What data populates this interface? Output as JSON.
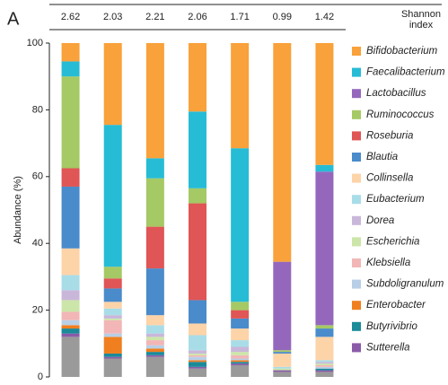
{
  "chart_data": {
    "type": "stacked_bar",
    "panel_label": "A",
    "ylabel": "Abundance (%)",
    "shannon_label": "Shannon index",
    "shannon_index": [
      2.62,
      2.03,
      2.21,
      2.06,
      1.71,
      0.99,
      1.42
    ],
    "categories": [
      null,
      null,
      null,
      null,
      null,
      null,
      null
    ],
    "ylim": [
      0,
      100
    ],
    "yticks": [
      0,
      20,
      40,
      60,
      80,
      100
    ],
    "grid": false,
    "series": [
      {
        "name": "Bifidobacterium",
        "color": "#f9a13a",
        "values": [
          5.5,
          24.5,
          34.5,
          20.5,
          31.5,
          65.5,
          36.5
        ]
      },
      {
        "name": "Faecalibacterium",
        "color": "#26bcd6",
        "values": [
          4.5,
          42.5,
          6,
          23,
          46,
          0,
          2
        ]
      },
      {
        "name": "Lactobacillus",
        "color": "#9467bd",
        "values": [
          0,
          0,
          0,
          0,
          0,
          26.5,
          46
        ]
      },
      {
        "name": "Ruminococcus",
        "color": "#a5c964",
        "values": [
          27.5,
          3.5,
          14.5,
          4.5,
          2.5,
          0.5,
          1
        ]
      },
      {
        "name": "Roseburia",
        "color": "#e05555",
        "values": [
          5.5,
          3,
          12.5,
          29,
          2.5,
          0,
          0
        ]
      },
      {
        "name": "Blautia",
        "color": "#4a8bcb",
        "values": [
          18.5,
          4,
          14,
          7,
          3,
          0.5,
          2.5
        ]
      },
      {
        "name": "Collinsella",
        "color": "#fdd3a8",
        "values": [
          8,
          2,
          3,
          3.5,
          3.5,
          4,
          7
        ]
      },
      {
        "name": "Eubacterium",
        "color": "#a8dde8",
        "values": [
          4.5,
          2,
          2.5,
          4.5,
          2,
          0.5,
          0.5
        ]
      },
      {
        "name": "Dorea",
        "color": "#c9b7da",
        "values": [
          3,
          1,
          1,
          1,
          1.5,
          0,
          0.5
        ]
      },
      {
        "name": "Escherichia",
        "color": "#cce5a8",
        "values": [
          3.5,
          0.5,
          1,
          0.5,
          1,
          0.5,
          0.5
        ]
      },
      {
        "name": "Klebsiella",
        "color": "#f2b6b6",
        "values": [
          2.5,
          4,
          1.5,
          0.5,
          1,
          0,
          0.5
        ]
      },
      {
        "name": "Subdoligranulum",
        "color": "#b8cfe6",
        "values": [
          1.5,
          1,
          1,
          1,
          0.5,
          0,
          0.5
        ]
      },
      {
        "name": "Enterobacter",
        "color": "#f07f1f",
        "values": [
          1,
          5,
          1,
          0.5,
          0.5,
          0,
          0
        ]
      },
      {
        "name": "Butyrivibrio",
        "color": "#1b8a99",
        "values": [
          1.5,
          1,
          1,
          1.5,
          0.5,
          0,
          0.5
        ]
      },
      {
        "name": "Sutterella",
        "color": "#8a5ba8",
        "values": [
          1,
          0.5,
          0.5,
          0.5,
          0.5,
          0.5,
          0.5
        ]
      },
      {
        "color": "#9a9a9a",
        "values": [
          12,
          5.5,
          6,
          2.5,
          3.5,
          1.5,
          1.5
        ]
      }
    ]
  }
}
